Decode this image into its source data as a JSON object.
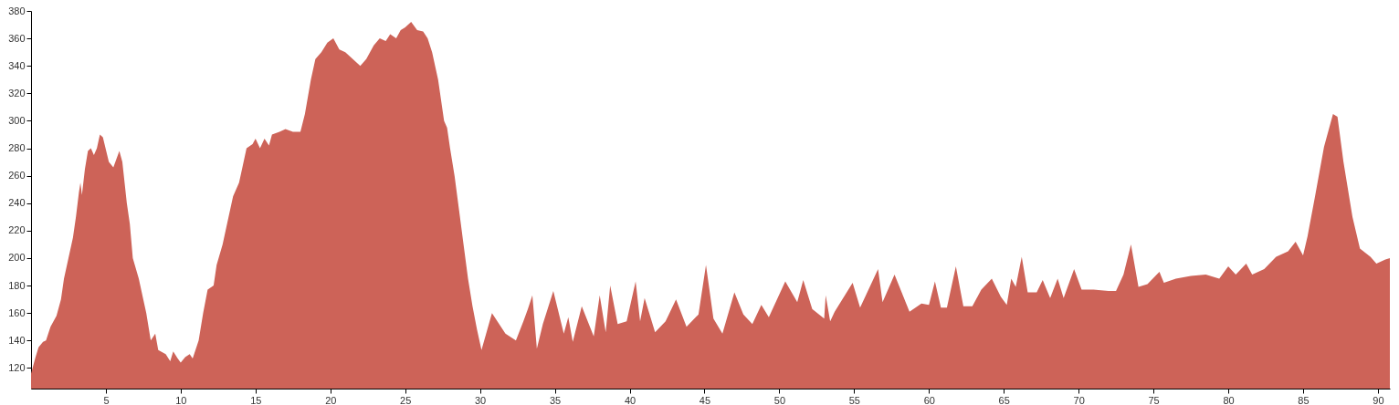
{
  "chart_data": {
    "type": "area",
    "xlim": [
      0,
      90.8
    ],
    "ylim": [
      105,
      380
    ],
    "xticks": [
      5,
      10,
      15,
      20,
      25,
      30,
      35,
      40,
      45,
      50,
      55,
      60,
      65,
      70,
      75,
      80,
      85,
      90
    ],
    "yticks": [
      120,
      140,
      160,
      180,
      200,
      220,
      240,
      260,
      280,
      300,
      320,
      340,
      360,
      380
    ],
    "grid": false,
    "x": [
      0,
      0.3,
      0.5,
      0.8,
      1.0,
      1.3,
      1.7,
      2.0,
      2.2,
      2.5,
      2.8,
      3.0,
      3.2,
      3.3,
      3.4,
      3.6,
      3.8,
      4.0,
      4.2,
      4.4,
      4.6,
      4.8,
      5.2,
      5.5,
      5.7,
      5.9,
      6.1,
      6.4,
      6.6,
      6.8,
      7.2,
      7.5,
      7.7,
      8.0,
      8.3,
      8.5,
      9.0,
      9.3,
      9.5,
      9.8,
      10.0,
      10.3,
      10.6,
      10.8,
      11.2,
      11.5,
      11.8,
      12.2,
      12.4,
      12.8,
      13.2,
      13.5,
      13.9,
      14.1,
      14.4,
      14.8,
      15.0,
      15.3,
      15.6,
      15.9,
      16.1,
      16.6,
      17.0,
      17.5,
      18.0,
      18.3,
      18.7,
      19.0,
      19.4,
      19.8,
      20.2,
      20.6,
      21.0,
      21.5,
      22.0,
      22.4,
      22.9,
      23.3,
      23.7,
      24.0,
      24.4,
      24.7,
      25.0,
      25.4,
      25.8,
      26.2,
      26.5,
      26.8,
      27.2,
      27.6,
      27.8,
      28.0,
      28.3,
      28.6,
      28.9,
      29.2,
      29.5,
      29.8,
      30.1,
      30.8,
      31.7,
      32.4,
      32.9,
      33.2,
      33.5,
      33.8,
      34.2,
      34.9,
      35.6,
      35.9,
      36.2,
      36.8,
      37.6,
      38.0,
      38.4,
      38.7,
      39.2,
      39.8,
      40.4,
      40.7,
      41.0,
      41.7,
      42.4,
      43.1,
      43.8,
      44.6,
      45.1,
      45.6,
      46.2,
      47.0,
      47.6,
      48.2,
      48.8,
      49.3,
      50.4,
      51.2,
      51.6,
      52.2,
      53.0,
      53.1,
      53.4,
      53.7,
      54.9,
      55.4,
      56.6,
      56.9,
      57.7,
      58.7,
      59.5,
      60.0,
      60.4,
      60.8,
      61.2,
      61.8,
      62.3,
      62.9,
      63.5,
      64.2,
      64.8,
      65.2,
      65.5,
      65.8,
      66.2,
      66.6,
      67.2,
      67.6,
      68.1,
      68.6,
      69.0,
      69.7,
      70.2,
      71.0,
      72.0,
      72.5,
      73.0,
      73.5,
      74.0,
      74.6,
      75.4,
      75.7,
      76.5,
      77.5,
      78.5,
      79.4,
      80.0,
      80.5,
      81.2,
      81.6,
      82.4,
      83.2,
      84.0,
      84.5,
      85.0,
      85.3,
      85.8,
      86.4,
      87.0,
      87.3,
      87.7,
      88.3,
      88.8,
      89.5,
      89.9,
      90.5,
      90.8
    ],
    "series": [
      {
        "color": "#cd6358",
        "values": [
          116,
          128,
          135,
          139,
          140,
          150,
          158,
          170,
          185,
          200,
          215,
          230,
          248,
          255,
          246,
          265,
          278,
          280,
          275,
          280,
          290,
          288,
          270,
          266,
          272,
          278,
          270,
          240,
          225,
          200,
          185,
          170,
          160,
          140,
          145,
          133,
          130,
          125,
          132,
          127,
          124,
          128,
          130,
          127,
          140,
          160,
          177,
          180,
          195,
          210,
          230,
          245,
          255,
          265,
          280,
          283,
          287,
          280,
          287,
          282,
          290,
          292,
          294,
          292,
          292,
          305,
          330,
          345,
          350,
          357,
          360,
          352,
          350,
          345,
          340,
          345,
          355,
          360,
          358,
          363,
          360,
          366,
          368,
          372,
          366,
          365,
          360,
          350,
          330,
          300,
          295,
          280,
          260,
          235,
          210,
          185,
          165,
          148,
          133,
          160,
          145,
          140,
          154,
          163,
          173,
          134,
          152,
          176,
          145,
          157,
          139,
          165,
          143,
          173,
          146,
          180,
          152,
          154,
          183,
          154,
          171,
          146,
          154,
          170,
          150,
          159,
          195,
          156,
          145,
          175,
          159,
          152,
          166,
          157,
          183,
          168,
          184,
          163,
          156,
          173,
          154,
          161,
          182,
          164,
          192,
          168,
          188,
          161,
          167,
          166,
          183,
          164,
          164,
          194,
          165,
          165,
          177,
          185,
          172,
          166,
          185,
          179,
          201,
          175,
          175,
          184,
          171,
          185,
          171,
          192,
          177,
          177,
          176,
          176,
          188,
          210,
          179,
          181,
          190,
          182,
          185,
          187,
          188,
          185,
          194,
          188,
          196,
          188,
          192,
          201,
          205,
          212,
          202,
          216,
          245,
          281,
          305,
          303,
          270,
          230,
          207,
          201,
          196,
          199,
          200
        ]
      }
    ]
  }
}
